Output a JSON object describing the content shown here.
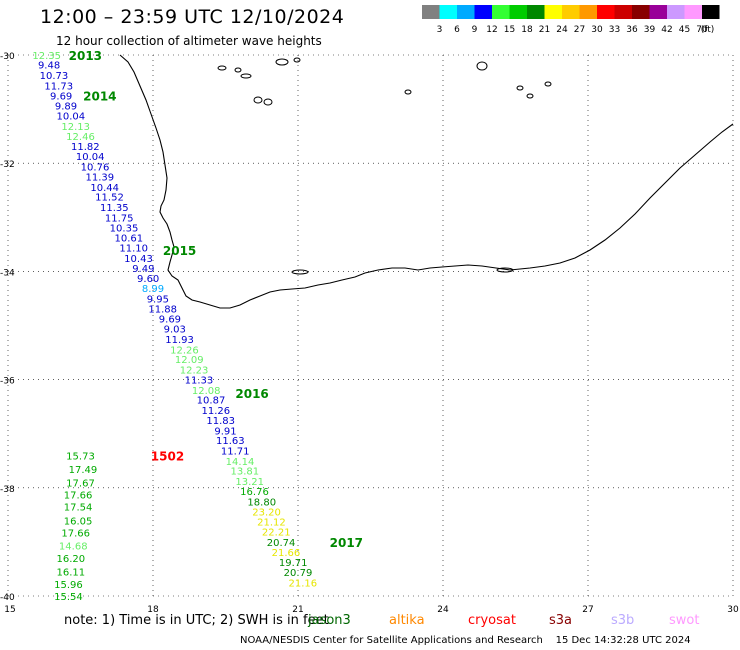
{
  "title": "12:00 – 23:59 UTC 12/10/2024",
  "subtitle": "12 hour collection of altimeter wave heights",
  "legend": {
    "unit": "(ft)",
    "bins": [
      {
        "label": "3",
        "color": "#808080"
      },
      {
        "label": "6",
        "color": "#00ffff"
      },
      {
        "label": "9",
        "color": "#00aaff"
      },
      {
        "label": "12",
        "color": "#0000ff"
      },
      {
        "label": "15",
        "color": "#33ff33"
      },
      {
        "label": "18",
        "color": "#00cc00"
      },
      {
        "label": "21",
        "color": "#008800"
      },
      {
        "label": "24",
        "color": "#ffff00"
      },
      {
        "label": "27",
        "color": "#ffcc00"
      },
      {
        "label": "30",
        "color": "#ff9900"
      },
      {
        "label": "33",
        "color": "#ff0000"
      },
      {
        "label": "36",
        "color": "#cc0000"
      },
      {
        "label": "39",
        "color": "#880000"
      },
      {
        "label": "42",
        "color": "#990099"
      },
      {
        "label": "45",
        "color": "#cc99ff"
      },
      {
        "label": "70",
        "color": "#ff99ff"
      },
      {
        "label": "",
        "color": "#000000"
      }
    ]
  },
  "map": {
    "lon_range": [
      15,
      30
    ],
    "lat_range": [
      -40,
      -30
    ],
    "lon_ticks": [
      "15",
      "18",
      "21",
      "24",
      "27",
      "30"
    ],
    "lat_ticks": [
      "-30",
      "-32",
      "-34",
      "-36",
      "-38",
      "-40"
    ],
    "grid": true
  },
  "hour_labels": [
    {
      "text": "2013",
      "lon": 16.6,
      "lat": -30.0,
      "color": "#008800"
    },
    {
      "text": "2014",
      "lon": 16.9,
      "lat": -30.75,
      "color": "#008800"
    },
    {
      "text": "2015",
      "lon": 18.55,
      "lat": -33.6,
      "color": "#008800"
    },
    {
      "text": "2016",
      "lon": 20.05,
      "lat": -36.25,
      "color": "#008800"
    },
    {
      "text": "1502",
      "lon": 18.3,
      "lat": -37.4,
      "color": "#ff0000"
    },
    {
      "text": "2017",
      "lon": 22.0,
      "lat": -39.0,
      "color": "#008800"
    }
  ],
  "observations": [
    {
      "v": "12.35",
      "lon": 15.8,
      "lat": -30.0,
      "color": "#66ee66"
    },
    {
      "v": "9.48",
      "lon": 15.85,
      "lat": -30.18,
      "color": "#0000cc"
    },
    {
      "v": "10.73",
      "lon": 15.95,
      "lat": -30.37,
      "color": "#0000cc"
    },
    {
      "v": "11.73",
      "lon": 16.05,
      "lat": -30.56,
      "color": "#0000cc"
    },
    {
      "v": "9.69",
      "lon": 16.1,
      "lat": -30.75,
      "color": "#0000cc"
    },
    {
      "v": "9.89",
      "lon": 16.2,
      "lat": -30.93,
      "color": "#0000cc"
    },
    {
      "v": "10.04",
      "lon": 16.3,
      "lat": -31.12,
      "color": "#0000cc"
    },
    {
      "v": "12.13",
      "lon": 16.4,
      "lat": -31.31,
      "color": "#66ee66"
    },
    {
      "v": "12.46",
      "lon": 16.5,
      "lat": -31.5,
      "color": "#66ee66"
    },
    {
      "v": "11.82",
      "lon": 16.6,
      "lat": -31.68,
      "color": "#0000cc"
    },
    {
      "v": "10.04",
      "lon": 16.7,
      "lat": -31.87,
      "color": "#0000cc"
    },
    {
      "v": "10.76",
      "lon": 16.8,
      "lat": -32.06,
      "color": "#0000cc"
    },
    {
      "v": "11.39",
      "lon": 16.9,
      "lat": -32.25,
      "color": "#0000cc"
    },
    {
      "v": "10.44",
      "lon": 17.0,
      "lat": -32.44,
      "color": "#0000cc"
    },
    {
      "v": "11.52",
      "lon": 17.1,
      "lat": -32.62,
      "color": "#0000cc"
    },
    {
      "v": "11.35",
      "lon": 17.2,
      "lat": -32.81,
      "color": "#0000cc"
    },
    {
      "v": "11.75",
      "lon": 17.3,
      "lat": -33.0,
      "color": "#0000cc"
    },
    {
      "v": "10.35",
      "lon": 17.4,
      "lat": -33.19,
      "color": "#0000cc"
    },
    {
      "v": "10.61",
      "lon": 17.5,
      "lat": -33.37,
      "color": "#0000cc"
    },
    {
      "v": "11.10",
      "lon": 17.6,
      "lat": -33.56,
      "color": "#0000cc"
    },
    {
      "v": "10.43",
      "lon": 17.7,
      "lat": -33.75,
      "color": "#0000cc"
    },
    {
      "v": "9.49",
      "lon": 17.8,
      "lat": -33.94,
      "color": "#0000cc"
    },
    {
      "v": "9.60",
      "lon": 17.9,
      "lat": -34.12,
      "color": "#0000cc"
    },
    {
      "v": "8.99",
      "lon": 18.0,
      "lat": -34.31,
      "color": "#00aaff"
    },
    {
      "v": "9.95",
      "lon": 18.1,
      "lat": -34.5,
      "color": "#0000cc"
    },
    {
      "v": "11.88",
      "lon": 18.2,
      "lat": -34.69,
      "color": "#0000cc"
    },
    {
      "v": "9.69",
      "lon": 18.35,
      "lat": -34.87,
      "color": "#0000cc"
    },
    {
      "v": "9.03",
      "lon": 18.45,
      "lat": -35.06,
      "color": "#0000cc"
    },
    {
      "v": "11.93",
      "lon": 18.55,
      "lat": -35.25,
      "color": "#0000cc"
    },
    {
      "v": "12.26",
      "lon": 18.65,
      "lat": -35.44,
      "color": "#66ee66"
    },
    {
      "v": "12.09",
      "lon": 18.75,
      "lat": -35.62,
      "color": "#66ee66"
    },
    {
      "v": "12.23",
      "lon": 18.85,
      "lat": -35.81,
      "color": "#66ee66"
    },
    {
      "v": "11.33",
      "lon": 18.95,
      "lat": -36.0,
      "color": "#0000cc"
    },
    {
      "v": "12.08",
      "lon": 19.1,
      "lat": -36.19,
      "color": "#66ee66"
    },
    {
      "v": "10.87",
      "lon": 19.2,
      "lat": -36.37,
      "color": "#0000cc"
    },
    {
      "v": "11.26",
      "lon": 19.3,
      "lat": -36.56,
      "color": "#0000cc"
    },
    {
      "v": "11.83",
      "lon": 19.4,
      "lat": -36.75,
      "color": "#0000cc"
    },
    {
      "v": "9.91",
      "lon": 19.5,
      "lat": -36.94,
      "color": "#0000cc"
    },
    {
      "v": "11.63",
      "lon": 19.6,
      "lat": -37.12,
      "color": "#0000cc"
    },
    {
      "v": "11.71",
      "lon": 19.7,
      "lat": -37.31,
      "color": "#0000cc"
    },
    {
      "v": "14.14",
      "lon": 19.8,
      "lat": -37.5,
      "color": "#66ee66"
    },
    {
      "v": "13.81",
      "lon": 19.9,
      "lat": -37.68,
      "color": "#66ee66"
    },
    {
      "v": "13.21",
      "lon": 20.0,
      "lat": -37.87,
      "color": "#66ee66"
    },
    {
      "v": "16.76",
      "lon": 20.1,
      "lat": -38.06,
      "color": "#00aa00"
    },
    {
      "v": "18.80",
      "lon": 20.25,
      "lat": -38.25,
      "color": "#008800"
    },
    {
      "v": "23.20",
      "lon": 20.35,
      "lat": -38.44,
      "color": "#e6e600"
    },
    {
      "v": "21.12",
      "lon": 20.45,
      "lat": -38.62,
      "color": "#e6e600"
    },
    {
      "v": "22.21",
      "lon": 20.55,
      "lat": -38.81,
      "color": "#e6e600"
    },
    {
      "v": "20.74",
      "lon": 20.65,
      "lat": -39.0,
      "color": "#008800"
    },
    {
      "v": "21.66",
      "lon": 20.75,
      "lat": -39.19,
      "color": "#e6e600"
    },
    {
      "v": "19.71",
      "lon": 20.9,
      "lat": -39.37,
      "color": "#008800"
    },
    {
      "v": "20.79",
      "lon": 21.0,
      "lat": -39.56,
      "color": "#008800"
    },
    {
      "v": "21.16",
      "lon": 21.1,
      "lat": -39.75,
      "color": "#e6e600"
    },
    {
      "v": "15.73",
      "lon": 16.5,
      "lat": -37.4,
      "color": "#00aa00"
    },
    {
      "v": "17.49",
      "lon": 16.55,
      "lat": -37.65,
      "color": "#00aa00"
    },
    {
      "v": "17.67",
      "lon": 16.5,
      "lat": -37.9,
      "color": "#00aa00"
    },
    {
      "v": "17.66",
      "lon": 16.45,
      "lat": -38.12,
      "color": "#00aa00"
    },
    {
      "v": "17.54",
      "lon": 16.45,
      "lat": -38.35,
      "color": "#00aa00"
    },
    {
      "v": "16.05",
      "lon": 16.45,
      "lat": -38.6,
      "color": "#00aa00"
    },
    {
      "v": "17.66",
      "lon": 16.4,
      "lat": -38.83,
      "color": "#00aa00"
    },
    {
      "v": "14.68",
      "lon": 16.35,
      "lat": -39.07,
      "color": "#66ee66"
    },
    {
      "v": "16.20",
      "lon": 16.3,
      "lat": -39.3,
      "color": "#00aa00"
    },
    {
      "v": "16.11",
      "lon": 16.3,
      "lat": -39.55,
      "color": "#00aa00"
    },
    {
      "v": "15.96",
      "lon": 16.25,
      "lat": -39.78,
      "color": "#00aa00"
    },
    {
      "v": "15.54",
      "lon": 16.25,
      "lat": -40.0,
      "color": "#00aa00"
    }
  ],
  "footer": {
    "note": "note:  1) Time is in UTC; 2) SWH is in feet",
    "satellites": [
      {
        "name": "jason3",
        "color": "#006600"
      },
      {
        "name": "altika",
        "color": "#ff8800"
      },
      {
        "name": "cryosat",
        "color": "#ff0000"
      },
      {
        "name": "s3a",
        "color": "#880000"
      },
      {
        "name": "s3b",
        "color": "#bbaaff"
      },
      {
        "name": "swot",
        "color": "#ff99ff"
      }
    ],
    "credit": "NOAA/NESDIS Center for Satellite Applications and Research",
    "timestamp": "15 Dec 14:32:28 UTC 2024"
  }
}
